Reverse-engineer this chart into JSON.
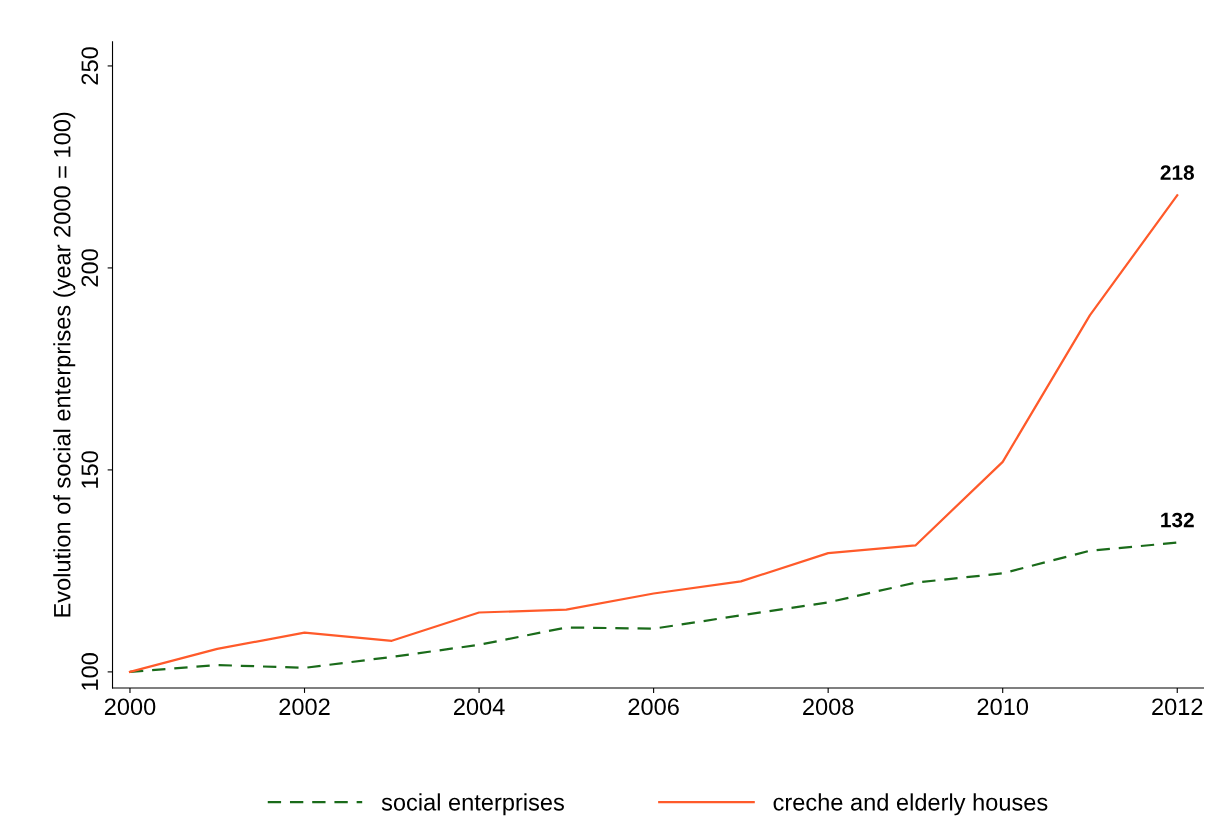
{
  "chart_data": {
    "type": "line",
    "ylabel": "Evolution of social enterprises (year 2000 = 100)",
    "x": [
      2000,
      2001,
      2002,
      2003,
      2004,
      2005,
      2006,
      2007,
      2008,
      2009,
      2010,
      2011,
      2012
    ],
    "series": [
      {
        "name": "social enterprises",
        "color": "#1a6b1a",
        "line_style": "dashed",
        "values": [
          100,
          101.7,
          101,
          103.7,
          106.7,
          111,
          110.7,
          114,
          117.2,
          122.1,
          124.4,
          130,
          132
        ],
        "value_labels": [
          null,
          null,
          null,
          null,
          null,
          null,
          null,
          null,
          null,
          null,
          null,
          null,
          "132"
        ]
      },
      {
        "name": "creche and elderly houses",
        "color": "#ff5a2a",
        "line_style": "solid",
        "values": [
          100,
          105.7,
          109.7,
          107.7,
          114.7,
          115.4,
          119.4,
          122.4,
          129.4,
          131.3,
          152,
          188.3,
          218
        ],
        "value_labels": [
          null,
          null,
          null,
          null,
          null,
          null,
          null,
          null,
          null,
          null,
          null,
          null,
          "218"
        ]
      }
    ],
    "xlim": [
      1999.8,
      2012.3
    ],
    "xticks": [
      2000,
      2002,
      2004,
      2006,
      2008,
      2010,
      2012
    ],
    "ylim": [
      96,
      256
    ],
    "yticks": [
      100,
      150,
      200,
      250
    ],
    "grid": false,
    "legend": "bottom"
  }
}
